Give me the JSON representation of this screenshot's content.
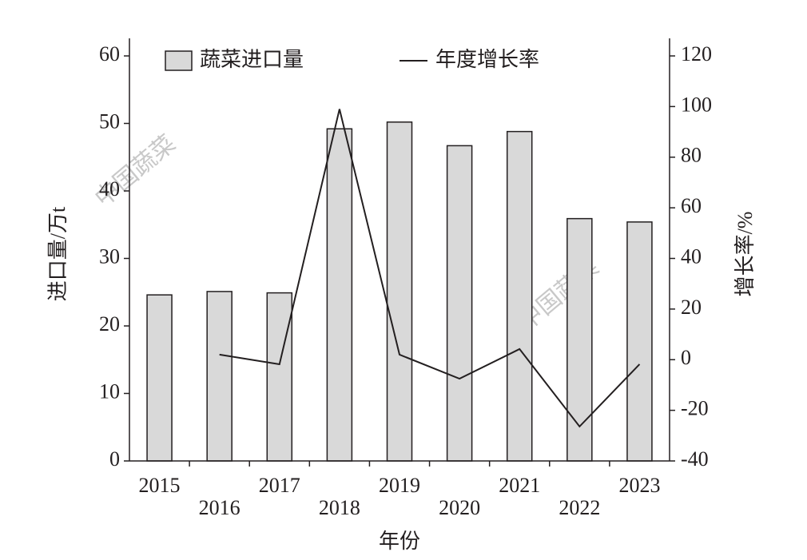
{
  "chart_data": {
    "type": "bar",
    "watermark": "中国蔬菜",
    "x_label": "年份",
    "y_label": "进口量/万t",
    "y2_label": "增长率/%",
    "categories": [
      "2015",
      "2016",
      "2017",
      "2018",
      "2019",
      "2020",
      "2021",
      "2022",
      "2023"
    ],
    "series": [
      {
        "name": "蔬菜进口量",
        "type": "bar",
        "color": "#d9d9d9",
        "values": [
          24.6,
          25.1,
          24.9,
          49.2,
          50.2,
          46.7,
          48.8,
          35.9,
          35.4
        ]
      },
      {
        "name": "年度增长率",
        "type": "line",
        "axis": "y2",
        "color": "#231f20",
        "values": [
          null,
          2,
          -1.8,
          99,
          2,
          -7.5,
          4.2,
          -26.4,
          -1.8
        ]
      }
    ],
    "ylim": [
      0,
      60
    ],
    "yticks": [
      0,
      10,
      20,
      30,
      40,
      50,
      60
    ],
    "y2lim": [
      -40,
      120
    ],
    "y2ticks": [
      -40,
      -20,
      0,
      20,
      40,
      60,
      80,
      100,
      120
    ],
    "grid": false,
    "legend": "top"
  }
}
